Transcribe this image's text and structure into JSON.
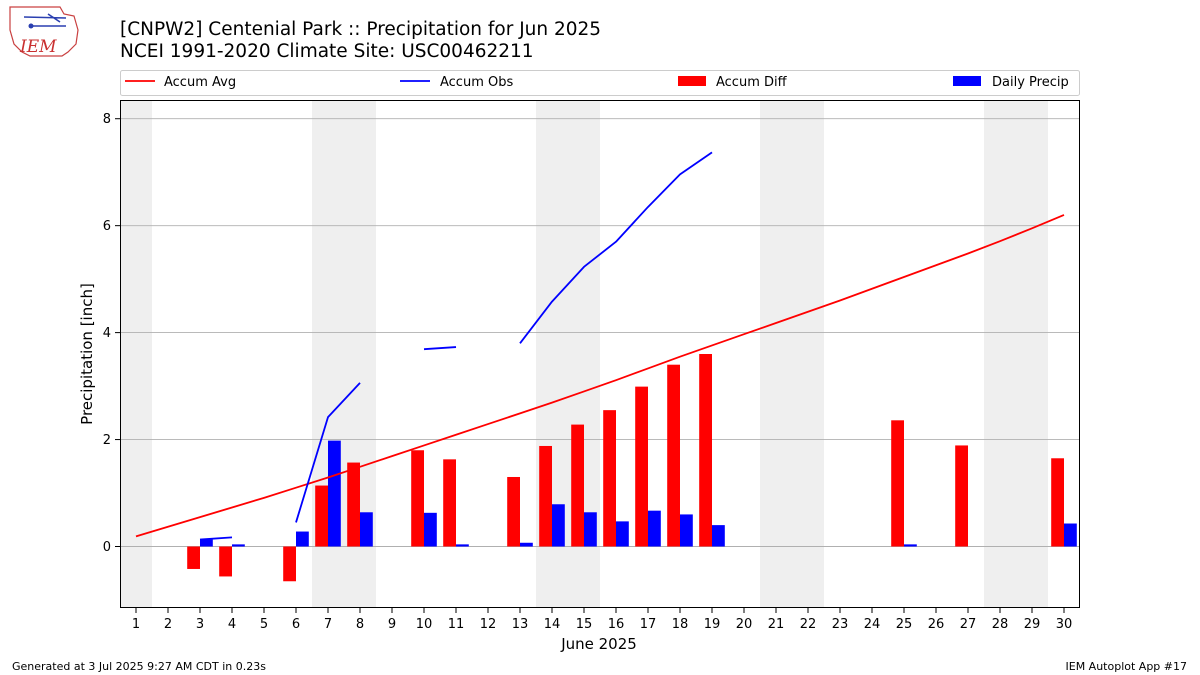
{
  "header": {
    "title_line1": "[CNPW2] Centenial Park :: Precipitation for Jun 2025",
    "title_line2": "NCEI 1991-2020 Climate Site: USC00462211",
    "logo_text": "IEM"
  },
  "footer": {
    "left": "Generated at 3 Jul 2025 9:27 AM CDT in 0.23s",
    "right": "IEM Autoplot App #17"
  },
  "colors": {
    "avg": "#ff0000",
    "obs": "#0000ff",
    "diff": "#ff0000",
    "daily": "#0000ff",
    "weekend_band": "#efefef",
    "grid": "#b0b0b0"
  },
  "chart_data": {
    "type": "bar",
    "title": "[CNPW2] Centenial Park :: Precipitation for Jun 2025",
    "subtitle": "NCEI 1991-2020 Climate Site: USC00462211",
    "xlabel": "June 2025",
    "ylabel": "Precipitation [inch]",
    "ylim": [
      -1.15,
      8.35
    ],
    "yticks": [
      0,
      2,
      4,
      6,
      8
    ],
    "x": [
      1,
      2,
      3,
      4,
      5,
      6,
      7,
      8,
      9,
      10,
      11,
      12,
      13,
      14,
      15,
      16,
      17,
      18,
      19,
      20,
      21,
      22,
      23,
      24,
      25,
      26,
      27,
      28,
      29,
      30
    ],
    "grid": "y-major",
    "legend_placement": "top",
    "weekend_bands": [
      [
        0.5,
        1.5
      ],
      [
        6.5,
        8.5
      ],
      [
        13.5,
        15.5
      ],
      [
        20.5,
        22.5
      ],
      [
        27.5,
        29.5
      ]
    ],
    "series": [
      {
        "name": "Accum Avg",
        "kind": "line",
        "values": [
          0.19,
          0.37,
          0.55,
          0.73,
          0.91,
          1.1,
          1.29,
          1.49,
          1.69,
          1.89,
          2.09,
          2.29,
          2.49,
          2.69,
          2.9,
          3.11,
          3.33,
          3.55,
          3.76,
          3.97,
          4.18,
          4.39,
          4.6,
          4.82,
          5.04,
          5.26,
          5.48,
          5.71,
          5.95,
          6.2
        ]
      },
      {
        "name": "Accum Obs",
        "kind": "line",
        "values": [
          null,
          null,
          0.13,
          0.17,
          null,
          0.45,
          2.42,
          3.06,
          null,
          3.69,
          3.73,
          null,
          3.8,
          4.58,
          5.23,
          5.7,
          6.35,
          6.96,
          7.37,
          null,
          null,
          null,
          null,
          null,
          null,
          null,
          null,
          null,
          null,
          null
        ]
      },
      {
        "name": "Accum Diff",
        "kind": "bar",
        "values": [
          0,
          0,
          -0.42,
          -0.56,
          0,
          -0.65,
          1.14,
          1.57,
          0,
          1.8,
          1.63,
          0,
          1.3,
          1.88,
          2.28,
          2.55,
          2.99,
          3.4,
          3.6,
          0,
          0,
          0,
          0,
          0,
          2.36,
          0,
          1.89,
          0,
          0,
          1.65
        ]
      },
      {
        "name": "Daily Precip",
        "kind": "bar",
        "values": [
          0,
          0,
          0.13,
          0.04,
          0,
          0.28,
          1.98,
          0.64,
          0,
          0.63,
          0.04,
          0,
          0.07,
          0.79,
          0.64,
          0.47,
          0.67,
          0.6,
          0.4,
          0,
          0,
          0,
          0,
          0,
          0.04,
          0,
          0,
          0,
          0,
          0.43
        ]
      }
    ]
  }
}
